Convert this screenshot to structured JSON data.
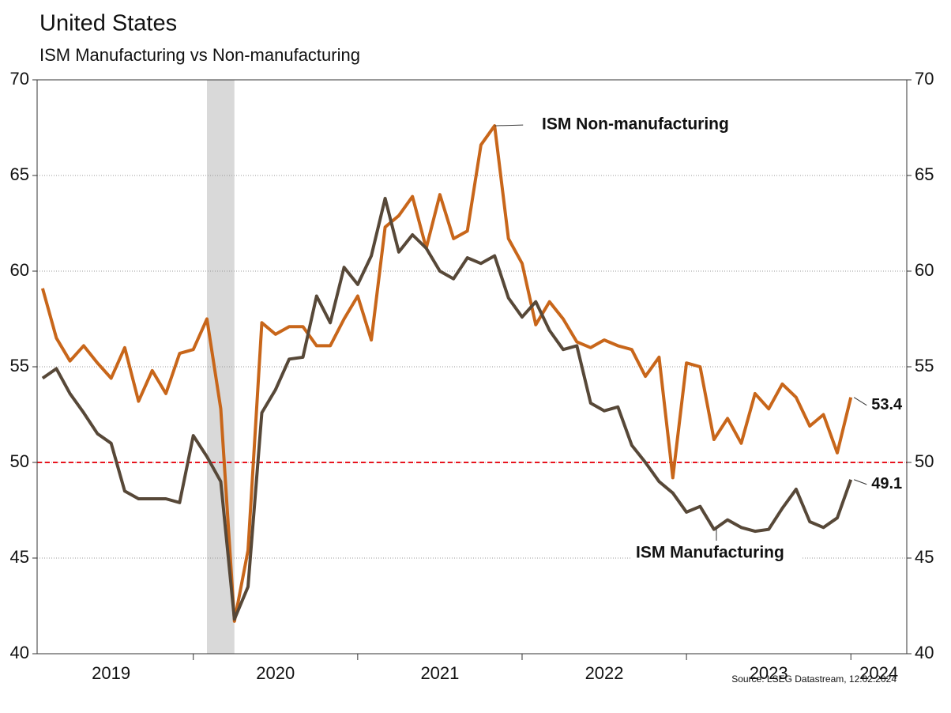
{
  "chart_data": {
    "type": "line",
    "title": "United States",
    "subtitle": "ISM Manufacturing vs Non-manufacturing",
    "source": "Source: LSEG Datastream, 12.02.2024",
    "x": [
      2019.083,
      2019.167,
      2019.25,
      2019.333,
      2019.417,
      2019.5,
      2019.583,
      2019.667,
      2019.75,
      2019.833,
      2019.917,
      2020,
      2020.083,
      2020.167,
      2020.25,
      2020.333,
      2020.417,
      2020.5,
      2020.583,
      2020.667,
      2020.75,
      2020.833,
      2020.917,
      2021,
      2021.083,
      2021.167,
      2021.25,
      2021.333,
      2021.417,
      2021.5,
      2021.583,
      2021.667,
      2021.75,
      2021.833,
      2021.917,
      2022,
      2022.083,
      2022.167,
      2022.25,
      2022.333,
      2022.417,
      2022.5,
      2022.583,
      2022.667,
      2022.75,
      2022.833,
      2022.917,
      2023,
      2023.083,
      2023.167,
      2023.25,
      2023.333,
      2023.417,
      2023.5,
      2023.583,
      2023.667,
      2023.75,
      2023.833,
      2023.917,
      2024
    ],
    "series": [
      {
        "name": "ISM Non-manufacturing",
        "color": "#c8661a",
        "values": [
          59.1,
          56.5,
          55.3,
          56.1,
          55.2,
          54.4,
          56.0,
          53.2,
          54.8,
          53.6,
          55.7,
          55.9,
          57.5,
          52.8,
          41.7,
          45.4,
          57.3,
          56.7,
          57.1,
          57.1,
          56.1,
          56.1,
          57.5,
          58.7,
          56.4,
          62.3,
          62.9,
          63.9,
          61.2,
          64.0,
          61.7,
          62.1,
          66.6,
          67.6,
          61.7,
          60.4,
          57.2,
          58.4,
          57.5,
          56.3,
          56.0,
          56.4,
          56.1,
          55.9,
          54.5,
          55.5,
          49.2,
          55.2,
          55.0,
          51.2,
          52.3,
          51.0,
          53.6,
          52.8,
          54.1,
          53.4,
          51.9,
          52.5,
          50.5,
          53.4
        ]
      },
      {
        "name": "ISM Manufacturing",
        "color": "#574838",
        "values": [
          54.4,
          54.9,
          53.6,
          52.6,
          51.5,
          51.0,
          48.5,
          48.1,
          48.1,
          48.1,
          47.9,
          51.4,
          50.3,
          49.0,
          41.8,
          43.5,
          52.6,
          53.8,
          55.4,
          55.5,
          58.7,
          57.3,
          60.2,
          59.3,
          60.8,
          63.8,
          61.0,
          61.9,
          61.2,
          60.0,
          59.6,
          60.7,
          60.4,
          60.8,
          58.6,
          57.6,
          58.4,
          56.9,
          55.9,
          56.1,
          53.1,
          52.7,
          52.9,
          50.9,
          50.0,
          49.0,
          48.4,
          47.4,
          47.7,
          46.5,
          47.0,
          46.6,
          46.4,
          46.5,
          47.6,
          48.6,
          46.9,
          46.6,
          47.1,
          49.1
        ]
      }
    ],
    "xlim": [
      2019.05,
      2024.34
    ],
    "xticks": [
      {
        "value": 2019,
        "label": "2019"
      },
      {
        "value": 2020,
        "label": "2020"
      },
      {
        "value": 2021,
        "label": "2021"
      },
      {
        "value": 2022,
        "label": "2022"
      },
      {
        "value": 2023,
        "label": "2023"
      },
      {
        "value": 2024,
        "label": "2024"
      }
    ],
    "ylim": [
      40,
      70
    ],
    "yticks": [
      40,
      45,
      50,
      55,
      60,
      65,
      70
    ],
    "y2lim": [
      40,
      70
    ],
    "y2ticks": [
      40,
      45,
      50,
      55,
      60,
      65,
      70
    ],
    "grid": true,
    "reference_line": {
      "value": 50,
      "color": "#e8141e"
    },
    "shaded_regions": [
      [
        2020.083,
        2020.25
      ]
    ],
    "shade_color": "#d9d9d9"
  }
}
